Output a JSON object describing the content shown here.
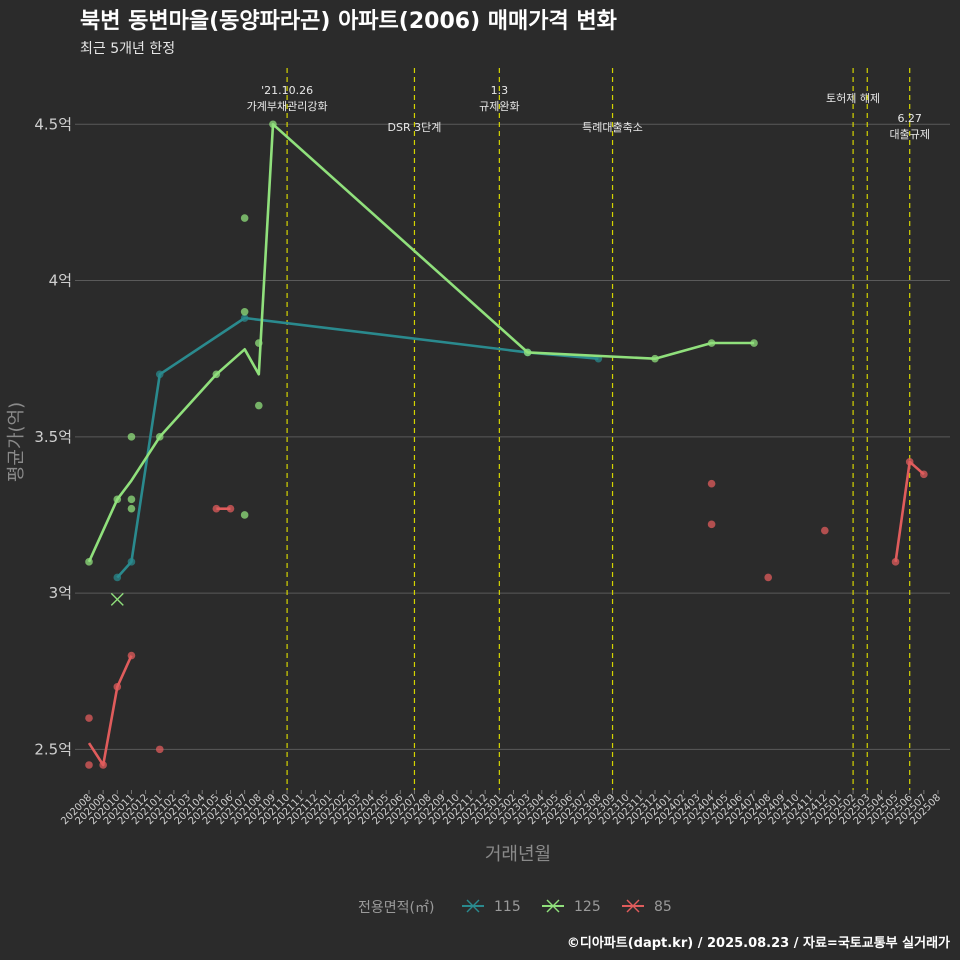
{
  "chart_data": {
    "type": "line",
    "title": "북변 동변마을(동양파라곤) 아파트(2006) 매매가격 변화",
    "subtitle": "최근 5개년 한정",
    "xlabel": "거래년월",
    "ylabel": "평균가(억)",
    "ylim": [
      2.37,
      4.68
    ],
    "yticks": [
      {
        "value": 2.5,
        "label": "2.5억"
      },
      {
        "value": 3.0,
        "label": "3억"
      },
      {
        "value": 3.5,
        "label": "3.5억"
      },
      {
        "value": 4.0,
        "label": "4억"
      },
      {
        "value": 4.5,
        "label": "4.5억"
      }
    ],
    "categories": [
      "202008",
      "202009",
      "202010",
      "202011",
      "202012",
      "202101",
      "202102",
      "202103",
      "202104",
      "202105",
      "202106",
      "202107",
      "202108",
      "202109",
      "202110",
      "202111",
      "202112",
      "202201",
      "202202",
      "202203",
      "202204",
      "202205",
      "202206",
      "202207",
      "202208",
      "202209",
      "202210",
      "202211",
      "202212",
      "202301",
      "202302",
      "202303",
      "202304",
      "202305",
      "202306",
      "202307",
      "202308",
      "202309",
      "202310",
      "202311",
      "202312",
      "202401",
      "202402",
      "202403",
      "202404",
      "202405",
      "202406",
      "202407",
      "202408",
      "202409",
      "202410",
      "202411",
      "202412",
      "202501",
      "202502",
      "202503",
      "202504",
      "202505",
      "202506",
      "202507",
      "202508"
    ],
    "grid": true,
    "legend": {
      "title": "전용면적(㎡)",
      "position": "bottom"
    },
    "series": [
      {
        "name": "115",
        "color": "#2a8a8e",
        "line": [
          [
            "202010",
            3.05
          ],
          [
            "202011",
            3.1
          ],
          [
            "202101",
            3.7
          ],
          [
            "202107",
            3.88
          ],
          [
            "202303",
            3.77
          ],
          [
            "202308",
            3.75
          ]
        ],
        "points": [
          [
            "202010",
            3.05
          ],
          [
            "202011",
            3.1
          ],
          [
            "202101",
            3.7
          ],
          [
            "202107",
            3.88
          ],
          [
            "202303",
            3.77
          ],
          [
            "202308",
            3.75
          ]
        ]
      },
      {
        "name": "125",
        "color": "#90e07c",
        "line": [
          [
            "202008",
            3.1
          ],
          [
            "202010",
            3.3
          ],
          [
            "202011",
            3.36
          ],
          [
            "202101",
            3.5
          ],
          [
            "202105",
            3.7
          ],
          [
            "202107",
            3.78
          ],
          [
            "202108",
            3.7
          ],
          [
            "202109",
            4.5
          ],
          [
            "202303",
            3.77
          ],
          [
            "202312",
            3.75
          ],
          [
            "202404",
            3.8
          ],
          [
            "202407",
            3.8
          ]
        ],
        "points": [
          [
            "202008",
            3.1
          ],
          [
            "202010",
            3.3
          ],
          [
            "202011",
            3.5
          ],
          [
            "202011",
            3.3
          ],
          [
            "202011",
            3.27
          ],
          [
            "202101",
            3.5
          ],
          [
            "202105",
            3.7
          ],
          [
            "202107",
            4.2
          ],
          [
            "202107",
            3.9
          ],
          [
            "202107",
            3.25
          ],
          [
            "202108",
            3.8
          ],
          [
            "202108",
            3.6
          ],
          [
            "202109",
            4.5
          ],
          [
            "202303",
            3.77
          ],
          [
            "202312",
            3.75
          ],
          [
            "202404",
            3.8
          ],
          [
            "202407",
            3.8
          ]
        ],
        "cancelled": [
          [
            "202010",
            2.98
          ]
        ]
      },
      {
        "name": "85",
        "color": "#e05c5c",
        "line": [
          [
            "202008",
            2.52
          ],
          [
            "202009",
            2.45
          ],
          [
            "202010",
            2.7
          ],
          [
            "202011",
            2.8
          ]
        ],
        "points": [
          [
            "202008",
            2.6
          ],
          [
            "202008",
            2.45
          ],
          [
            "202009",
            2.45
          ],
          [
            "202010",
            2.7
          ],
          [
            "202011",
            2.8
          ],
          [
            "202101",
            2.5
          ],
          [
            "202105",
            3.27
          ],
          [
            "202106",
            3.27
          ],
          [
            "202404",
            3.35
          ],
          [
            "202404",
            3.22
          ],
          [
            "202408",
            3.05
          ],
          [
            "202412",
            3.2
          ],
          [
            "202505",
            3.1
          ],
          [
            "202506",
            3.42
          ],
          [
            "202507",
            3.38
          ]
        ],
        "segments": [
          [
            [
              "202008",
              2.52
            ],
            [
              "202009",
              2.45
            ],
            [
              "202010",
              2.7
            ],
            [
              "202011",
              2.8
            ]
          ],
          [
            [
              "202105",
              3.27
            ],
            [
              "202106",
              3.27
            ]
          ],
          [
            [
              "202505",
              3.1
            ],
            [
              "202506",
              3.42
            ],
            [
              "202507",
              3.38
            ]
          ]
        ]
      }
    ],
    "events": [
      {
        "x": 14.0,
        "lines": [
          "'21.10.26",
          "가계부채관리강화"
        ],
        "row": 0
      },
      {
        "x": 23.0,
        "lines": [
          "DSR 3단계"
        ],
        "row": 2
      },
      {
        "x": 29.0,
        "lines": [
          "1.3",
          "규제완화"
        ],
        "row": 0
      },
      {
        "x": 37.0,
        "lines": [
          "특례대출축소"
        ],
        "row": 2
      },
      {
        "x": 54.0,
        "lines": [
          "토허제 해제"
        ],
        "row": 1
      },
      {
        "x": 55.0,
        "lines": [],
        "row": 1
      },
      {
        "x": 58.0,
        "lines": [
          "6.27",
          "대출규제"
        ],
        "row": 3
      }
    ]
  },
  "caption": "©디아파트(dapt.kr) / 2025.08.23 / 자료=국토교통부 실거래가"
}
